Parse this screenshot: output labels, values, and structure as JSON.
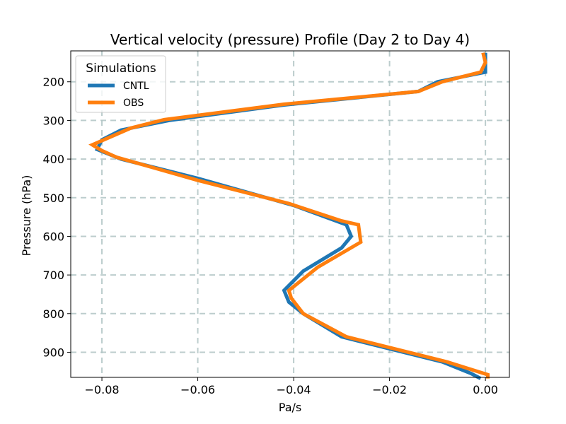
{
  "chart_data": {
    "type": "line",
    "title": "Vertical velocity (pressure) Profile (Day 2 to Day 4)",
    "xlabel": "Pa/s",
    "ylabel": "Pressure (hPa)",
    "xlim": [
      -0.0865,
      0.005
    ],
    "ylim": [
      965,
      120
    ],
    "y_inverted": true,
    "grid": true,
    "xticks": [
      -0.08,
      -0.06,
      -0.04,
      -0.02,
      0.0
    ],
    "xtick_labels": [
      "−0.08",
      "−0.06",
      "−0.04",
      "−0.02",
      "0.00"
    ],
    "yticks": [
      200,
      300,
      400,
      500,
      600,
      700,
      800,
      900
    ],
    "ytick_labels": [
      "200",
      "300",
      "400",
      "500",
      "600",
      "700",
      "800",
      "900"
    ],
    "legend": {
      "title": "Simulations",
      "placement": "upper-left"
    },
    "series": [
      {
        "name": "CNTL",
        "color": "#1f77b4",
        "points": [
          [
            0.0,
            125
          ],
          [
            0.0,
            150
          ],
          [
            0.0,
            175
          ],
          [
            -0.01,
            200
          ],
          [
            -0.014,
            225
          ],
          [
            -0.042,
            260
          ],
          [
            -0.066,
            300
          ],
          [
            -0.076,
            325
          ],
          [
            -0.08,
            350
          ],
          [
            -0.081,
            375
          ],
          [
            -0.076,
            400
          ],
          [
            -0.06,
            450
          ],
          [
            -0.04,
            520
          ],
          [
            -0.029,
            570
          ],
          [
            -0.028,
            600
          ],
          [
            -0.03,
            630
          ],
          [
            -0.038,
            690
          ],
          [
            -0.042,
            740
          ],
          [
            -0.041,
            770
          ],
          [
            -0.038,
            800
          ],
          [
            -0.03,
            860
          ],
          [
            -0.009,
            925
          ],
          [
            -0.003,
            955
          ],
          [
            -0.001,
            968
          ]
        ]
      },
      {
        "name": "OBS",
        "color": "#ff7f0e",
        "points": [
          [
            -0.0005,
            125
          ],
          [
            0.0,
            150
          ],
          [
            -0.001,
            175
          ],
          [
            -0.009,
            200
          ],
          [
            -0.014,
            225
          ],
          [
            -0.042,
            258
          ],
          [
            -0.067,
            298
          ],
          [
            -0.074,
            320
          ],
          [
            -0.082,
            363
          ],
          [
            -0.08,
            378
          ],
          [
            -0.077,
            395
          ],
          [
            -0.06,
            455
          ],
          [
            -0.041,
            515
          ],
          [
            -0.03,
            560
          ],
          [
            -0.0265,
            570
          ],
          [
            -0.026,
            615
          ],
          [
            -0.035,
            680
          ],
          [
            -0.041,
            740
          ],
          [
            -0.0405,
            760
          ],
          [
            -0.038,
            800
          ],
          [
            -0.029,
            860
          ],
          [
            -0.008,
            925
          ],
          [
            0.0005,
            958
          ],
          [
            0.0005,
            968
          ]
        ]
      }
    ]
  }
}
